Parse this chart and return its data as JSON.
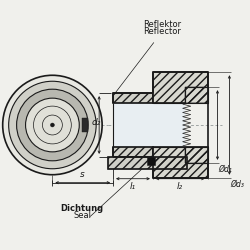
{
  "bg_color": "#f0f0ec",
  "line_color": "#1a1a1a",
  "fig_width": 2.5,
  "fig_height": 2.5,
  "dpi": 100,
  "annotations": {
    "reflektor": [
      "Reflektor",
      "Reflector"
    ],
    "dichtung": [
      "Dichtung",
      "Seal"
    ],
    "d2": "d₂",
    "d1": "Ød₁",
    "d3": "Ød₃",
    "s": "s",
    "l1": "l₁",
    "l2": "l₂"
  }
}
